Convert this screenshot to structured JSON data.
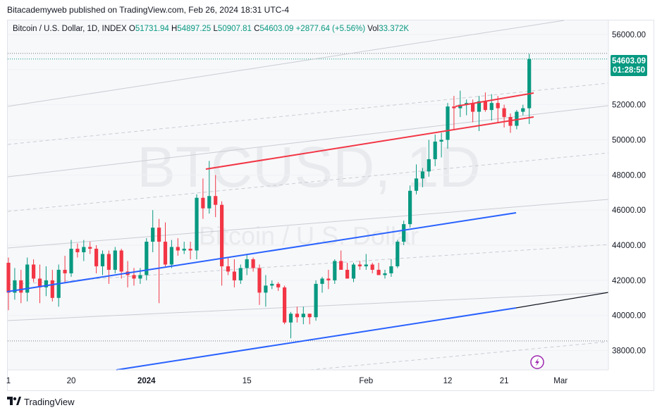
{
  "header": {
    "published": "Bitacademyweb published on TradingView.com, Feb 26, 2024 18:31 UTC-4"
  },
  "legend": {
    "symbol": "Bitcoin / U.S. Dollar, 1D, INDEX",
    "o_label": "O",
    "o": "51731.94",
    "h_label": "H",
    "h": "54897.25",
    "l_label": "L",
    "l": "50907.81",
    "c_label": "C",
    "c": "54603.09",
    "change": "+2877.64 (+5.56%)",
    "vol_label": "Vol",
    "vol": "33.372K"
  },
  "watermark": {
    "ticker": "BTCUSD, 1D",
    "name": "Bitcoin / U.S. Dollar"
  },
  "price_badge": {
    "price": "54603.09",
    "countdown": "01:28:50"
  },
  "footer": {
    "brand": "TradingView"
  },
  "colors": {
    "up": "#089981",
    "down": "#f23645",
    "trend_blue": "#2962ff",
    "trend_red": "#f23645",
    "channel": "#c9ccd3",
    "text": "#131722"
  },
  "chart_data": {
    "type": "candlestick",
    "x_ticks": [
      "1",
      "20",
      "2024",
      "15",
      "Feb",
      "12",
      "21",
      "Mar"
    ],
    "y_ticks": [
      "56000.00",
      "54000.00",
      "52000.00",
      "50000.00",
      "48000.00",
      "46000.00",
      "44000.00",
      "42000.00",
      "40000.00",
      "38000.00"
    ],
    "ylim": [
      36900,
      56800
    ],
    "dotted_levels": [
      54603,
      38550
    ],
    "candles": [
      [
        43000,
        43300,
        40300,
        41300
      ],
      [
        41300,
        42700,
        40900,
        42000
      ],
      [
        42000,
        42600,
        40700,
        41300
      ],
      [
        41300,
        43300,
        40800,
        42900
      ],
      [
        42900,
        43200,
        41900,
        42100
      ],
      [
        42100,
        42900,
        40700,
        41600
      ],
      [
        41600,
        42800,
        41100,
        42000
      ],
      [
        42000,
        42600,
        40800,
        41000
      ],
      [
        41000,
        42900,
        40500,
        42600
      ],
      [
        42600,
        43400,
        41900,
        42400
      ],
      [
        42400,
        44300,
        42200,
        43800
      ],
      [
        43800,
        44100,
        43300,
        43600
      ],
      [
        43600,
        44300,
        43100,
        43900
      ],
      [
        43900,
        44200,
        43500,
        43800
      ],
      [
        43800,
        44000,
        42400,
        42800
      ],
      [
        42800,
        43700,
        42300,
        43500
      ],
      [
        43500,
        43700,
        41800,
        42600
      ],
      [
        42600,
        43900,
        42400,
        43700
      ],
      [
        43700,
        43800,
        42100,
        42500
      ],
      [
        42500,
        43100,
        41600,
        42300
      ],
      [
        42300,
        42700,
        41700,
        42100
      ],
      [
        42100,
        42700,
        41800,
        42300
      ],
      [
        42300,
        44400,
        42000,
        44200
      ],
      [
        44200,
        46000,
        43600,
        45000
      ],
      [
        45000,
        45500,
        40700,
        44200
      ],
      [
        44200,
        45300,
        42800,
        42900
      ],
      [
        42900,
        44300,
        42700,
        43900
      ],
      [
        43900,
        44400,
        43400,
        43700
      ],
      [
        43700,
        44200,
        43500,
        43800
      ],
      [
        43800,
        44200,
        43200,
        43700
      ],
      [
        43700,
        46900,
        43200,
        46700
      ],
      [
        46700,
        47800,
        45500,
        46100
      ],
      [
        46100,
        48800,
        45800,
        46800
      ],
      [
        46800,
        48000,
        45600,
        46300
      ],
      [
        46300,
        46500,
        41700,
        42800
      ],
      [
        42800,
        43300,
        42300,
        42500
      ],
      [
        42500,
        43200,
        41600,
        42000
      ],
      [
        42000,
        42900,
        41800,
        42700
      ],
      [
        42700,
        43500,
        42300,
        43200
      ],
      [
        43200,
        43300,
        42500,
        42700
      ],
      [
        42700,
        42900,
        40600,
        41300
      ],
      [
        41300,
        42300,
        40500,
        41700
      ],
      [
        41700,
        42000,
        41500,
        41800
      ],
      [
        41800,
        41900,
        41400,
        41600
      ],
      [
        41600,
        41700,
        39500,
        39600
      ],
      [
        39600,
        40200,
        38700,
        40100
      ],
      [
        40100,
        40500,
        39600,
        39900
      ],
      [
        39900,
        40500,
        39500,
        40100
      ],
      [
        40100,
        40100,
        39500,
        39900
      ],
      [
        39900,
        42000,
        39700,
        41800
      ],
      [
        41800,
        42200,
        41300,
        42100
      ],
      [
        42100,
        42600,
        41500,
        42000
      ],
      [
        42000,
        43200,
        41800,
        43100
      ],
      [
        43100,
        43700,
        42700,
        42600
      ],
      [
        42600,
        43000,
        42100,
        42100
      ],
      [
        42100,
        43000,
        41900,
        42900
      ],
      [
        42900,
        43100,
        42600,
        42800
      ],
      [
        42800,
        43500,
        42600,
        42900
      ],
      [
        42900,
        43000,
        42400,
        42600
      ],
      [
        42600,
        43000,
        42300,
        42300
      ],
      [
        42300,
        42600,
        42100,
        42400
      ],
      [
        42400,
        43200,
        42200,
        42800
      ],
      [
        42800,
        44300,
        42700,
        44200
      ],
      [
        44200,
        45400,
        44000,
        45200
      ],
      [
        45200,
        47400,
        45000,
        47100
      ],
      [
        47100,
        48600,
        46900,
        47800
      ],
      [
        47800,
        48400,
        47300,
        48200
      ],
      [
        48200,
        50000,
        47900,
        48900
      ],
      [
        48900,
        50300,
        48500,
        49900
      ],
      [
        49900,
        50400,
        49000,
        50000
      ],
      [
        50000,
        52100,
        49500,
        51900
      ],
      [
        51900,
        52500,
        50600,
        51800
      ],
      [
        51800,
        52800,
        51300,
        52000
      ],
      [
        52000,
        52300,
        51400,
        52100
      ],
      [
        52100,
        52300,
        51000,
        51600
      ],
      [
        51600,
        52500,
        50500,
        52200
      ],
      [
        52200,
        52700,
        51600,
        51700
      ],
      [
        51700,
        52600,
        51100,
        52100
      ],
      [
        52100,
        52500,
        51000,
        51800
      ],
      [
        51800,
        52000,
        50700,
        51300
      ],
      [
        51300,
        51500,
        50400,
        50800
      ],
      [
        50800,
        51700,
        50600,
        51600
      ],
      [
        51600,
        52000,
        51400,
        51800
      ],
      [
        51800,
        54900,
        50900,
        54603
      ]
    ]
  }
}
